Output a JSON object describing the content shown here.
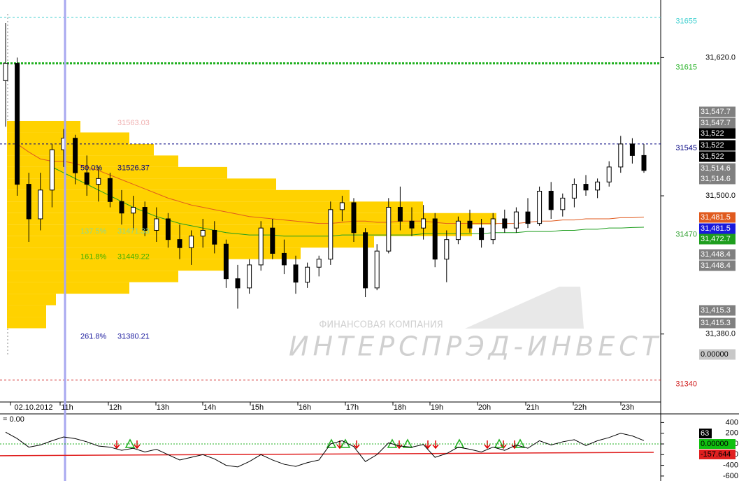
{
  "chart_data": {
    "type": "candlestick",
    "open": [
      31600,
      31615,
      31510,
      31480,
      31505,
      31540,
      31550,
      31520,
      31510,
      31515,
      31495,
      31485,
      31490,
      31470,
      31480,
      31462,
      31455,
      31465,
      31470,
      31458,
      31428,
      31420,
      31440,
      31472,
      31450,
      31440,
      31425,
      31438,
      31445,
      31488,
      31494,
      31468,
      31420,
      31452,
      31490,
      31478,
      31472,
      31480,
      31445,
      31462,
      31478,
      31472,
      31462,
      31480,
      31472,
      31486,
      31476,
      31504,
      31488,
      31498,
      31510,
      31505,
      31512,
      31525,
      31545,
      31535
    ],
    "high": [
      31650,
      31620,
      31520,
      31520,
      31545,
      31558,
      31553,
      31535,
      31525,
      31520,
      31505,
      31500,
      31495,
      31490,
      31485,
      31475,
      31470,
      31480,
      31478,
      31462,
      31440,
      31445,
      31478,
      31480,
      31462,
      31448,
      31442,
      31448,
      31495,
      31500,
      31498,
      31472,
      31458,
      31498,
      31508,
      31490,
      31492,
      31485,
      31470,
      31482,
      31488,
      31480,
      31485,
      31488,
      31490,
      31498,
      31508,
      31512,
      31502,
      31515,
      31518,
      31515,
      31530,
      31552,
      31550,
      31545
    ],
    "low": [
      31560,
      31500,
      31460,
      31470,
      31490,
      31525,
      31510,
      31500,
      31495,
      31490,
      31475,
      31470,
      31465,
      31460,
      31455,
      31445,
      31440,
      31455,
      31450,
      31420,
      31402,
      31415,
      31435,
      31445,
      31432,
      31415,
      31420,
      31430,
      31440,
      31478,
      31460,
      31412,
      31418,
      31450,
      31470,
      31465,
      31462,
      31438,
      31425,
      31458,
      31468,
      31455,
      31458,
      31468,
      31468,
      31472,
      31474,
      31480,
      31482,
      31490,
      31500,
      31498,
      31508,
      31520,
      31528,
      31520
    ],
    "close": [
      31615,
      31510,
      31480,
      31505,
      31540,
      31550,
      31520,
      31510,
      31515,
      31495,
      31485,
      31490,
      31470,
      31480,
      31462,
      31455,
      31465,
      31470,
      31458,
      31428,
      31420,
      31440,
      31472,
      31450,
      31440,
      31425,
      31438,
      31445,
      31488,
      31494,
      31468,
      31420,
      31452,
      31490,
      31478,
      31472,
      31480,
      31445,
      31462,
      31478,
      31472,
      31462,
      31480,
      31472,
      31486,
      31476,
      31504,
      31488,
      31498,
      31510,
      31505,
      31512,
      31525,
      31545,
      31535,
      31522
    ],
    "up_color": "#ffffff",
    "down_color": "#000000",
    "ylim": [
      31324,
      31670
    ],
    "yticks": [
      {
        "value": 31620,
        "label": "31,620.0"
      },
      {
        "value": 31500,
        "label": "31,500.0"
      },
      {
        "value": 31380,
        "label": "31,380.0"
      }
    ],
    "x_labels": [
      "02.10.2012",
      "11h",
      "12h",
      "13h",
      "14h",
      "15h",
      "16h",
      "17h",
      "18h",
      "19h",
      "20h",
      "21h",
      "22h",
      "23h"
    ],
    "levels": [
      {
        "value": 31655,
        "color": "#40d0d0",
        "width": 1
      },
      {
        "value": 31615,
        "color": "#20b020",
        "width": 3
      },
      {
        "value": 31545,
        "color": "#000080",
        "width": 1
      },
      {
        "value": 31470,
        "color": "#30a030",
        "width": 0
      },
      {
        "value": 31340,
        "color": "#d02020",
        "width": 1
      }
    ],
    "profile": {
      "color": "#ffd200",
      "prices": [
        31390,
        31400,
        31410,
        31420,
        31430,
        31440,
        31450,
        31460,
        31470,
        31480,
        31490,
        31500,
        31510,
        31520,
        31530,
        31540,
        31550,
        31560
      ],
      "volumes": [
        8,
        8,
        10,
        25,
        35,
        45,
        60,
        75,
        95,
        100,
        85,
        70,
        55,
        45,
        35,
        30,
        25,
        15
      ]
    },
    "averages": [
      {
        "color": "#e05a1e",
        "values": [
          null,
          31545,
          31538,
          31532,
          31530,
          31530,
          31528,
          31525,
          31522,
          31518,
          31514,
          31510,
          31506,
          31502,
          31498,
          31495,
          31492,
          31490,
          31488,
          31486,
          31484,
          31482,
          31481,
          31480,
          31479,
          31478,
          31477,
          31476,
          31476,
          31477,
          31478,
          31478,
          31477,
          31477,
          31478,
          31478,
          31478,
          31477,
          31476,
          31476,
          31476,
          31476,
          31476,
          31476,
          31476,
          31477,
          31478,
          31478,
          31479,
          31479,
          31480,
          31480,
          31480,
          31481,
          31481,
          31481.5
        ]
      },
      {
        "color": "#1e9e1e",
        "values": [
          null,
          null,
          null,
          null,
          31525,
          31520,
          31515,
          31510,
          31505,
          31500,
          31495,
          31490,
          31486,
          31482,
          31479,
          31476,
          31474,
          31472,
          31470,
          31468,
          31467,
          31466,
          31466,
          31466,
          31465,
          31465,
          31465,
          31465,
          31465,
          31466,
          31466,
          31466,
          31466,
          31466,
          31466,
          31466,
          31467,
          31467,
          31467,
          31467,
          31467,
          31467,
          31468,
          31468,
          31468,
          31469,
          31469,
          31469,
          31470,
          31470,
          31471,
          31471,
          31472,
          31472,
          31472.5,
          31472.7
        ]
      }
    ],
    "fib": [
      {
        "ratio": "50.0%",
        "price": 31526.37,
        "color": "#000080"
      },
      {
        "ratio": "137.5%",
        "price": 31471.33,
        "color": "#90d890"
      },
      {
        "ratio": "161.8%",
        "price": 31449.22,
        "color": "#40b000"
      },
      {
        "ratio": "261.8%",
        "price": 31380.21,
        "color": "#2020a0"
      }
    ],
    "fib_top": 31563.03,
    "price_labels": [
      {
        "label": "31,547.7",
        "bg": "#808080",
        "fg": "#ffffff"
      },
      {
        "label": "31,547.7",
        "bg": "#808080",
        "fg": "#ffffff"
      },
      {
        "label": "31,522",
        "bg": "#000000",
        "fg": "#ffffff"
      },
      {
        "label": "31,522",
        "bg": "#000000",
        "fg": "#ffffff"
      },
      {
        "label": "31,522",
        "bg": "#000000",
        "fg": "#ffffff"
      },
      {
        "label": "31,514.6",
        "bg": "#808080",
        "fg": "#ffffff"
      },
      {
        "label": "31,514.6",
        "bg": "#808080",
        "fg": "#ffffff"
      },
      {
        "label": "31,481.5",
        "bg": "#e05a1e",
        "fg": "#ffffff"
      },
      {
        "label": "31,481.5",
        "bg": "#1a1adc",
        "fg": "#ffffff"
      },
      {
        "label": "31,472.7",
        "bg": "#1e9e1e",
        "fg": "#ffffff"
      },
      {
        "label": "31,448.4",
        "bg": "#808080",
        "fg": "#ffffff"
      },
      {
        "label": "31,448.4",
        "bg": "#808080",
        "fg": "#ffffff"
      },
      {
        "label": "31,415.3",
        "bg": "#808080",
        "fg": "#ffffff"
      },
      {
        "label": "31,415.3",
        "bg": "#808080",
        "fg": "#ffffff"
      },
      {
        "label": "0.00000",
        "bg": "#c8c8c8",
        "fg": "#000000"
      }
    ],
    "watermark": [
      "ФИНАНСОВАЯ КОМПАНИЯ",
      "ИНТЕРСПРЭД-ИНВЕСТ"
    ],
    "indicator": {
      "title": "= 0.00",
      "values": [
        220,
        100,
        -60,
        -20,
        60,
        130,
        100,
        40,
        -40,
        -60,
        -120,
        -80,
        -150,
        -100,
        -200,
        -300,
        -250,
        -200,
        -280,
        -400,
        -430,
        -330,
        -200,
        -300,
        -380,
        -420,
        -350,
        -300,
        0,
        60,
        -50,
        -330,
        -200,
        20,
        -40,
        -60,
        -10,
        -250,
        -180,
        -60,
        -100,
        -150,
        -60,
        -120,
        -20,
        -80,
        60,
        -20,
        40,
        80,
        -30,
        60,
        120,
        200,
        150,
        63
      ],
      "signal": [
        -220,
        -157.644
      ],
      "ylim": [
        -693,
        562
      ],
      "yticks": [
        400,
        200,
        0,
        -200,
        -400,
        -600
      ],
      "labels": [
        {
          "label": "63",
          "bg": "#000000",
          "fg": "#ffffff"
        },
        {
          "label": "0.00000",
          "bg": "#10c010",
          "fg": "#000000"
        },
        {
          "label": "-157.644",
          "bg": "#e02020",
          "fg": "#000000"
        }
      ]
    }
  }
}
